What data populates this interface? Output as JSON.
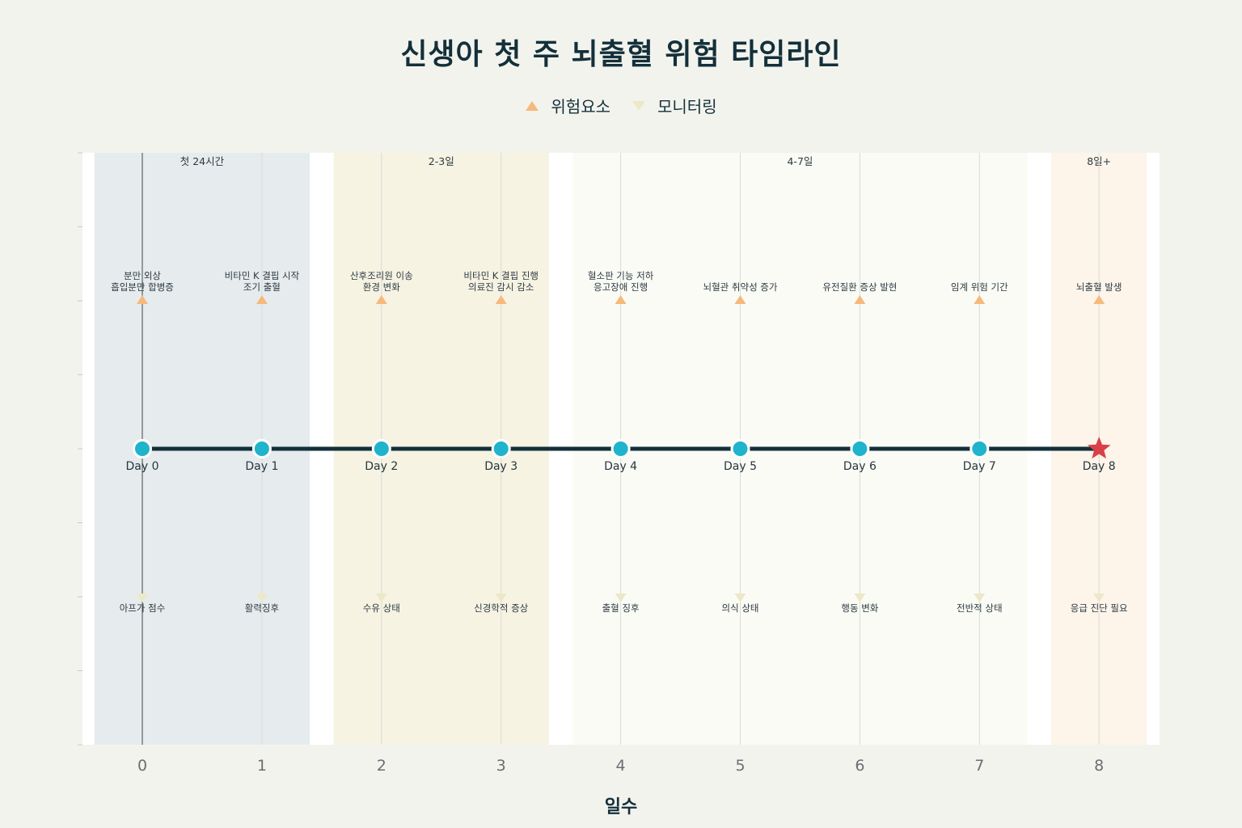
{
  "title": "신생아 첫 주 뇌출혈 위험 타임라인",
  "legend": {
    "risk": {
      "label": "위험요소",
      "color": "#f6b97c"
    },
    "monitor": {
      "label": "모니터링",
      "color": "#ece8c8"
    }
  },
  "chart_data": {
    "type": "line",
    "title": "신생아 첫 주 뇌출혈 위험 타임라인",
    "xlabel": "일수",
    "ylabel": "",
    "xlim": [
      -0.5,
      8.5
    ],
    "x_ticks": [
      "0",
      "1",
      "2",
      "3",
      "4",
      "5",
      "6",
      "7",
      "8"
    ],
    "phases": [
      {
        "label": "첫 24시간",
        "start": -0.4,
        "end": 1.4,
        "color": "#e6ebed"
      },
      {
        "label": "2-3일",
        "start": 1.6,
        "end": 3.4,
        "color": "#f6f3e3"
      },
      {
        "label": "4-7일",
        "start": 3.6,
        "end": 7.4,
        "color": "#fbfbf6"
      },
      {
        "label": "8일+",
        "start": 7.6,
        "end": 8.4,
        "color": "#fdf4ea"
      }
    ],
    "timeline": [
      {
        "x": 0,
        "label": "Day 0",
        "risk": [
          "분만 외상",
          "흡입분만 합병증"
        ],
        "monitoring": "아프가 점수",
        "marker": "circle"
      },
      {
        "x": 1,
        "label": "Day 1",
        "risk": [
          "비타민 K 결핍 시작",
          "조기 출혈"
        ],
        "monitoring": "활력징후",
        "marker": "circle"
      },
      {
        "x": 2,
        "label": "Day 2",
        "risk": [
          "산후조리원 이송",
          "환경 변화"
        ],
        "monitoring": "수유 상태",
        "marker": "circle"
      },
      {
        "x": 3,
        "label": "Day 3",
        "risk": [
          "비타민 K 결핍 진행",
          "의료진 감시 감소"
        ],
        "monitoring": "신경학적 증상",
        "marker": "circle"
      },
      {
        "x": 4,
        "label": "Day 4",
        "risk": [
          "혈소판 기능 저하",
          "응고장애 진행"
        ],
        "monitoring": "출혈 징후",
        "marker": "circle"
      },
      {
        "x": 5,
        "label": "Day 5",
        "risk": [
          "뇌혈관 취약성 증가"
        ],
        "monitoring": "의식 상태",
        "marker": "circle"
      },
      {
        "x": 6,
        "label": "Day 6",
        "risk": [
          "유전질환 증상 발현"
        ],
        "monitoring": "행동 변화",
        "marker": "circle"
      },
      {
        "x": 7,
        "label": "Day 7",
        "risk": [
          "임계 위험 기간"
        ],
        "monitoring": "전반적 상태",
        "marker": "circle"
      },
      {
        "x": 8,
        "label": "Day 8",
        "risk": [
          "뇌출혈 발생"
        ],
        "monitoring": "응급 진단 필요",
        "marker": "star"
      }
    ],
    "colors": {
      "line": "#13303a",
      "point": "#1fb3cc",
      "star": "#d9404a",
      "risk_marker": "#f6b97c",
      "monitor_marker": "#ece8c8"
    }
  }
}
